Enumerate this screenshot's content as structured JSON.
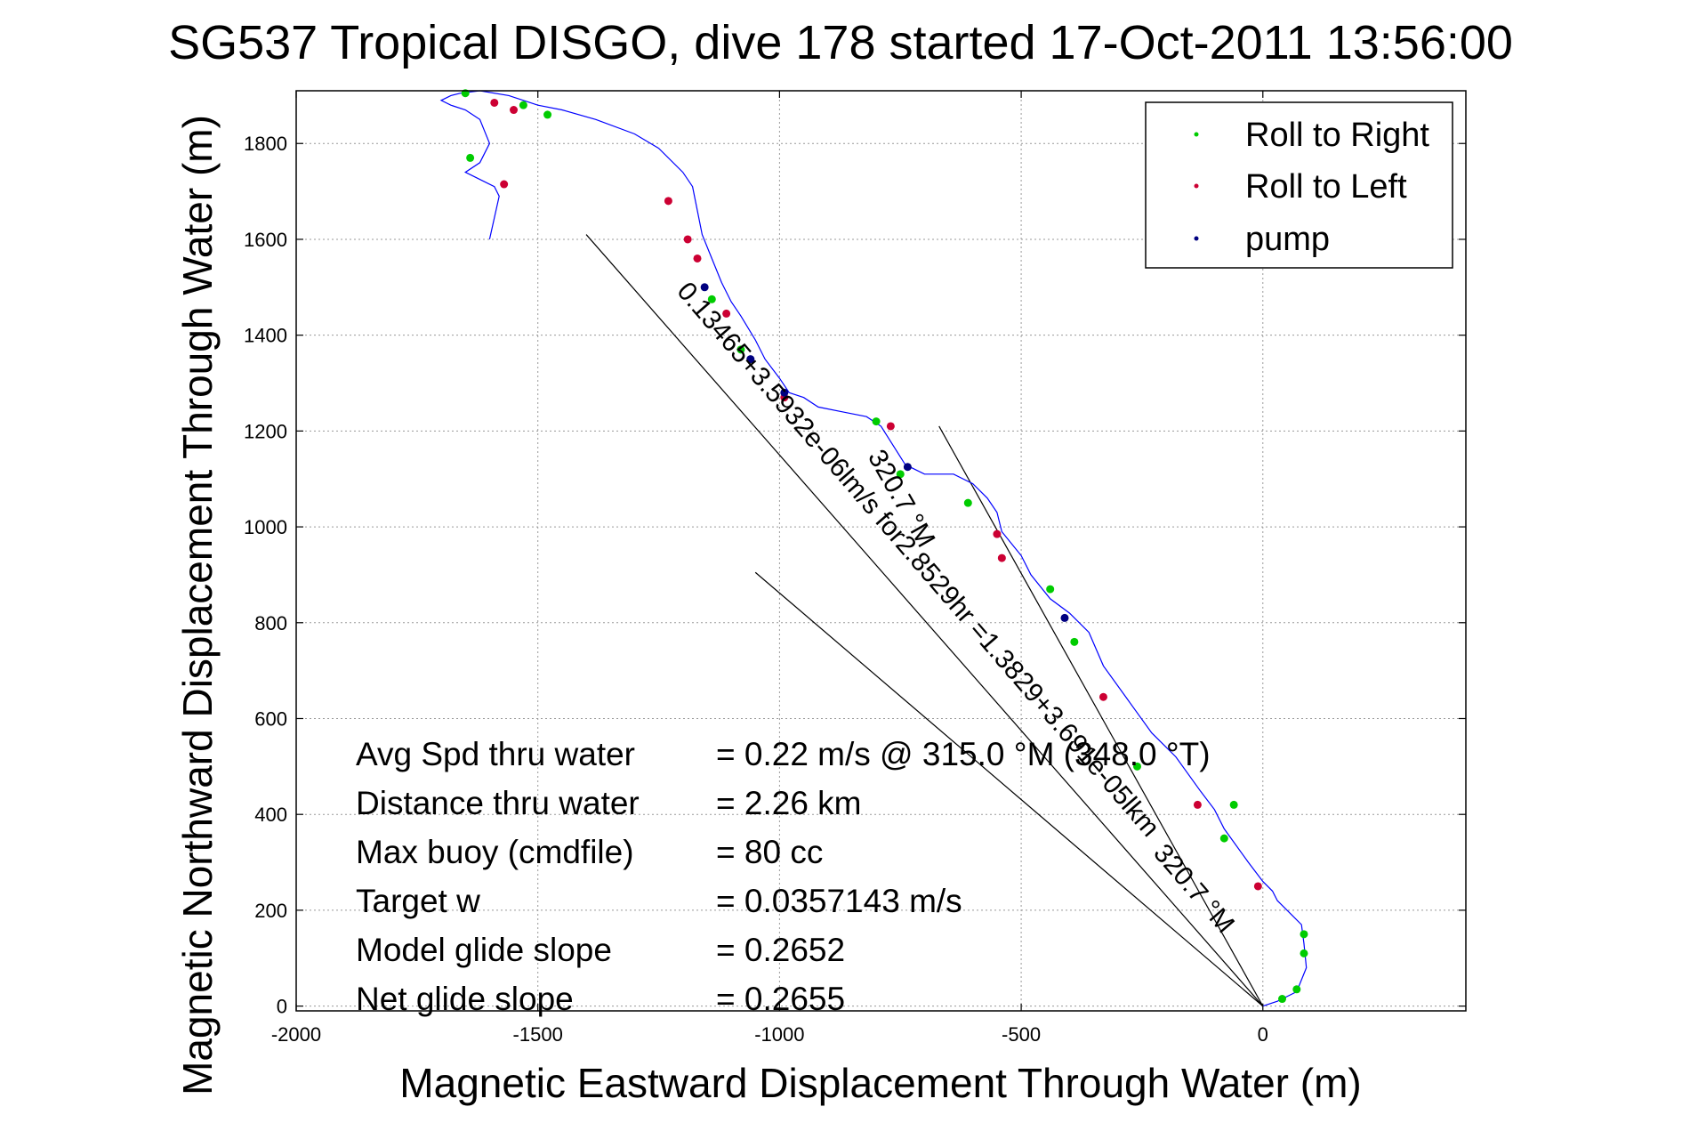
{
  "chart_data": {
    "type": "line",
    "title": "SG537 Tropical DISGO, dive 178 started 17-Oct-2011 13:56:00",
    "xlabel": "Magnetic Eastward Displacement Through Water (m)",
    "ylabel": "Magnetic Northward Displacement Through Water (m)",
    "xlim": [
      -2000,
      420
    ],
    "ylim": [
      -10,
      1910
    ],
    "x_ticks": [
      -2000,
      -1500,
      -1000,
      -500,
      0
    ],
    "y_ticks": [
      0,
      200,
      400,
      600,
      800,
      1000,
      1200,
      1400,
      1600,
      1800
    ],
    "x_tick_labels": [
      "-2000",
      "-1500",
      "-1000",
      "-500",
      "0"
    ],
    "y_tick_labels": [
      "0",
      "200",
      "400",
      "600",
      "800",
      "1000",
      "1200",
      "1400",
      "1600",
      "1800"
    ],
    "grid": true,
    "legend_position": "top-right",
    "colors": {
      "track": "#0000ff",
      "roll_right": "#00cc00",
      "roll_left": "#cc0033",
      "pump": "#000080",
      "fit_line": "#000000",
      "grid": "#999999"
    },
    "series": [
      {
        "name": "track",
        "x": [
          0,
          30,
          70,
          90,
          85,
          80,
          60,
          30,
          20,
          0,
          -30,
          -80,
          -100,
          -130,
          -180,
          -230,
          -280,
          -330,
          -360,
          -400,
          -440,
          -480,
          -500,
          -540,
          -550,
          -570,
          -600,
          -640,
          -700,
          -740,
          -790,
          -820,
          -870,
          -920,
          -950,
          -980,
          -1000,
          -1030,
          -1050,
          -1080,
          -1100,
          -1120,
          -1140,
          -1160,
          -1170,
          -1180,
          -1200,
          -1250,
          -1300,
          -1380,
          -1450,
          -1500,
          -1560,
          -1620,
          -1660,
          -1680,
          -1700,
          -1680,
          -1650,
          -1620,
          -1600,
          -1620,
          -1650,
          -1630,
          -1590,
          -1580,
          -1600
        ],
        "y": [
          0,
          10,
          30,
          80,
          130,
          170,
          190,
          220,
          240,
          260,
          300,
          370,
          410,
          450,
          520,
          570,
          640,
          710,
          780,
          820,
          850,
          900,
          940,
          990,
          1030,
          1060,
          1090,
          1110,
          1110,
          1130,
          1210,
          1230,
          1240,
          1250,
          1270,
          1280,
          1310,
          1350,
          1390,
          1440,
          1470,
          1510,
          1560,
          1610,
          1660,
          1710,
          1740,
          1790,
          1820,
          1850,
          1870,
          1880,
          1900,
          1910,
          1905,
          1900,
          1890,
          1880,
          1870,
          1850,
          1800,
          1760,
          1740,
          1730,
          1710,
          1690,
          1600
        ]
      },
      {
        "name": "Roll to Right",
        "x": [
          40,
          70,
          85,
          85,
          -60,
          -80,
          -260,
          -390,
          -440,
          -610,
          -750,
          -800,
          -1080,
          -1140,
          -1480,
          -1530,
          -1650,
          -1640
        ],
        "y": [
          15,
          35,
          110,
          150,
          420,
          350,
          500,
          760,
          870,
          1050,
          1110,
          1220,
          1370,
          1475,
          1860,
          1880,
          1905,
          1770
        ]
      },
      {
        "name": "Roll to Left",
        "x": [
          -10,
          -135,
          -330,
          -540,
          -550,
          -770,
          -990,
          -1110,
          -1170,
          -1190,
          -1230,
          -1550,
          -1590,
          -1570
        ],
        "y": [
          250,
          420,
          645,
          935,
          985,
          1210,
          1270,
          1445,
          1560,
          1600,
          1680,
          1870,
          1885,
          1715
        ]
      },
      {
        "name": "pump",
        "x": [
          -410,
          -735,
          -990,
          -1060,
          -1155
        ],
        "y": [
          810,
          1125,
          1280,
          1350,
          1500
        ]
      }
    ],
    "fit_lines": [
      {
        "x": [
          0,
          -670
        ],
        "y": [
          0,
          1210
        ]
      },
      {
        "x": [
          0,
          -1050
        ],
        "y": [
          0,
          905
        ]
      },
      {
        "x": [
          0,
          -1400
        ],
        "y": [
          0,
          1610
        ]
      }
    ],
    "legend": [
      "Roll to Right",
      "Roll to Left",
      "pump"
    ],
    "annotations": {
      "fit1": "320.7 °M",
      "fit2": "0.13465+3.5932e-06lm/s for2.8529hr =1.3829+3.691e-05lkm",
      "fit3": "320.7 °M"
    },
    "stats": [
      {
        "label": "Avg Spd thru water",
        "value": "=  0.22 m/s @ 315.0 °M (348.0 °T)"
      },
      {
        "label": "Distance thru water",
        "value": "=  2.26 km"
      },
      {
        "label": "Max buoy (cmdfile)",
        "value": "= 80 cc"
      },
      {
        "label": "Target w",
        "value": "= 0.0357143 m/s"
      },
      {
        "label": "Model glide slope",
        "value": "= 0.2652"
      },
      {
        "label": "Net glide slope",
        "value": "= 0.2655"
      }
    ]
  }
}
